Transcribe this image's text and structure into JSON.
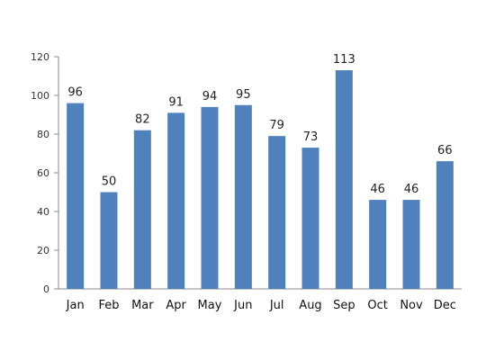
{
  "chart_data": {
    "type": "bar",
    "title": "",
    "xlabel": "",
    "ylabel": "",
    "categories": [
      "Jan",
      "Feb",
      "Mar",
      "Apr",
      "May",
      "Jun",
      "Jul",
      "Aug",
      "Sep",
      "Oct",
      "Nov",
      "Dec"
    ],
    "values": [
      96,
      50,
      82,
      91,
      94,
      95,
      79,
      73,
      113,
      46,
      46,
      66
    ],
    "ylim": [
      0,
      120
    ],
    "yticks": [
      0,
      20,
      40,
      60,
      80,
      100,
      120
    ],
    "grid": false,
    "legend": "none",
    "bar_color": "#4f81bd",
    "axis_color": "#888888"
  }
}
